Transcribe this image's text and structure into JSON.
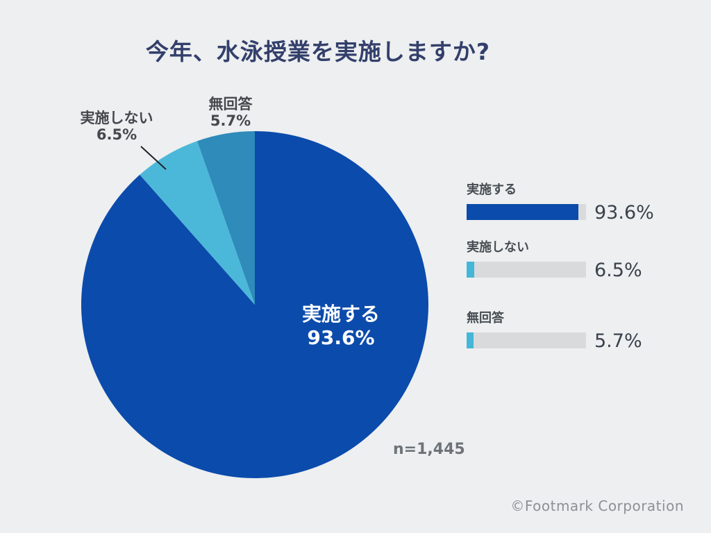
{
  "title": "今年、水泳授業を実施しますか?",
  "sample_label": "n=1,445",
  "copyright": "©Footmark Corporation",
  "colors": {
    "background": "#edeff0",
    "title_navy": "#333f6b",
    "pie_primary_blue": "#0b4bab",
    "pie_cyan": "#4cb8d9",
    "pie_steel_blue": "#2e8bba",
    "callout_text_gray": "#45494e",
    "legend_label_gray": "#474d52",
    "legend_value_dark": "#3a424d",
    "bar_track_gray": "#d8dadb",
    "bar_accent_cyan": "#45b6d8",
    "sample_gray": "#6d7378",
    "copyright_gray": "#8c9196",
    "leader_line": "#1f2326"
  },
  "chart_data": {
    "type": "pie",
    "title": "今年、水泳授業を実施しますか?",
    "sample_size": 1445,
    "start_angle_deg": 0,
    "direction": "clockwise",
    "legend_position": "right",
    "series": [
      {
        "label": "実施する",
        "value": 93.6,
        "display": "93.6%",
        "color": "#0b4bab",
        "label_placement": "inside"
      },
      {
        "label": "実施しない",
        "value": 6.5,
        "display": "6.5%",
        "color": "#4cb8d9",
        "label_placement": "outside-with-leader-line"
      },
      {
        "label": "無回答",
        "value": 5.7,
        "display": "5.7%",
        "color": "#2e8bba",
        "label_placement": "outside"
      }
    ]
  },
  "legend": {
    "items": [
      {
        "label": "実施する",
        "value": 93.6,
        "value_text": "93.6%",
        "fill_color": "#0b4bab"
      },
      {
        "label": "実施しない",
        "value": 6.5,
        "value_text": "6.5%",
        "fill_color": "#45b6d8"
      },
      {
        "label": "無回答",
        "value": 5.7,
        "value_text": "5.7%",
        "fill_color": "#45b6d8"
      }
    ]
  }
}
